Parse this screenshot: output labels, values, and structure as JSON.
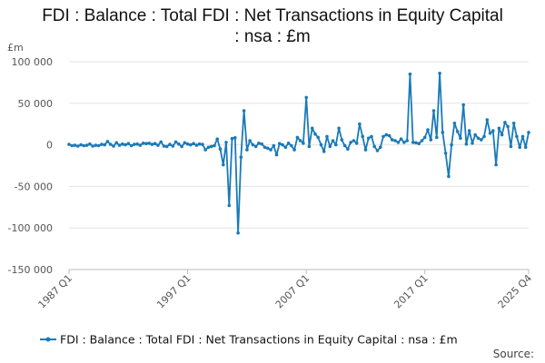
{
  "chart_data": {
    "type": "line",
    "title_line1": "FDI : Balance : Total FDI : Net Transactions in Equity Capital",
    "title_line2": ": nsa : £m",
    "unit_label": "£m",
    "ylim": [
      -150000,
      100000
    ],
    "y_ticks": [
      {
        "value": 100000,
        "label": "100 000"
      },
      {
        "value": 50000,
        "label": "50 000"
      },
      {
        "value": 0,
        "label": "0"
      },
      {
        "value": -50000,
        "label": "-50 000"
      },
      {
        "value": -100000,
        "label": "-100 000"
      },
      {
        "value": -150000,
        "label": "-150 000"
      }
    ],
    "x_start": "1987 Q1",
    "x_end": "2025 Q4",
    "x_ticks": [
      "1987 Q1",
      "1997 Q1",
      "2007 Q1",
      "2017 Q1",
      "2025 Q4"
    ],
    "grid": "horizontal",
    "legend_position": "bottom",
    "color": "#1a7ab8",
    "series": [
      {
        "name": "FDI : Balance : Total FDI : Net Transactions in Equity Capital : nsa : £m",
        "points": [
          [
            "1987 Q1",
            500
          ],
          [
            "1987 Q2",
            -1000
          ],
          [
            "1987 Q3",
            -500
          ],
          [
            "1987 Q4",
            -1500
          ],
          [
            "1988 Q1",
            0
          ],
          [
            "1988 Q2",
            -1000
          ],
          [
            "1988 Q3",
            -500
          ],
          [
            "1988 Q4",
            1000
          ],
          [
            "1989 Q1",
            -1500
          ],
          [
            "1989 Q2",
            -500
          ],
          [
            "1989 Q3",
            -1000
          ],
          [
            "1989 Q4",
            500
          ],
          [
            "1990 Q1",
            0
          ],
          [
            "1990 Q2",
            4000
          ],
          [
            "1990 Q3",
            500
          ],
          [
            "1990 Q4",
            -1500
          ],
          [
            "1991 Q1",
            2500
          ],
          [
            "1991 Q2",
            -500
          ],
          [
            "1991 Q3",
            1000
          ],
          [
            "1991 Q4",
            0
          ],
          [
            "1992 Q1",
            1500
          ],
          [
            "1992 Q2",
            -1000
          ],
          [
            "1992 Q3",
            500
          ],
          [
            "1992 Q4",
            1000
          ],
          [
            "1993 Q1",
            -500
          ],
          [
            "1993 Q2",
            2000
          ],
          [
            "1993 Q3",
            1500
          ],
          [
            "1993 Q4",
            2000
          ],
          [
            "1994 Q1",
            500
          ],
          [
            "1994 Q2",
            1500
          ],
          [
            "1994 Q3",
            -500
          ],
          [
            "1994 Q4",
            3500
          ],
          [
            "1995 Q1",
            -1500
          ],
          [
            "1995 Q2",
            -2000
          ],
          [
            "1995 Q3",
            500
          ],
          [
            "1995 Q4",
            -1500
          ],
          [
            "1996 Q1",
            3500
          ],
          [
            "1996 Q2",
            1000
          ],
          [
            "1996 Q3",
            -2000
          ],
          [
            "1996 Q4",
            2500
          ],
          [
            "1997 Q1",
            1000
          ],
          [
            "1997 Q2",
            0
          ],
          [
            "1997 Q3",
            1500
          ],
          [
            "1997 Q4",
            -500
          ],
          [
            "1998 Q1",
            1000
          ],
          [
            "1998 Q2",
            500
          ],
          [
            "1998 Q3",
            -6000
          ],
          [
            "1998 Q4",
            -3000
          ],
          [
            "1999 Q1",
            -2000
          ],
          [
            "1999 Q2",
            -1000
          ],
          [
            "1999 Q3",
            7000
          ],
          [
            "1999 Q4",
            -5000
          ],
          [
            "2000 Q1",
            -24000
          ],
          [
            "2000 Q2",
            3000
          ],
          [
            "2000 Q3",
            -73000
          ],
          [
            "2000 Q4",
            7500
          ],
          [
            "2001 Q1",
            8500
          ],
          [
            "2001 Q2",
            -106000
          ],
          [
            "2001 Q3",
            -15000
          ],
          [
            "2001 Q4",
            41000
          ],
          [
            "2002 Q1",
            -6000
          ],
          [
            "2002 Q2",
            5000
          ],
          [
            "2002 Q3",
            0
          ],
          [
            "2002 Q4",
            -2000
          ],
          [
            "2003 Q1",
            2000
          ],
          [
            "2003 Q2",
            1000
          ],
          [
            "2003 Q3",
            -3000
          ],
          [
            "2003 Q4",
            -4000
          ],
          [
            "2004 Q1",
            -6000
          ],
          [
            "2004 Q2",
            -1000
          ],
          [
            "2004 Q3",
            -12000
          ],
          [
            "2004 Q4",
            1500
          ],
          [
            "2005 Q1",
            0
          ],
          [
            "2005 Q2",
            -3000
          ],
          [
            "2005 Q3",
            2000
          ],
          [
            "2005 Q4",
            -1000
          ],
          [
            "2006 Q1",
            -6000
          ],
          [
            "2006 Q2",
            9000
          ],
          [
            "2006 Q3",
            5000
          ],
          [
            "2006 Q4",
            2000
          ],
          [
            "2007 Q1",
            57000
          ],
          [
            "2007 Q2",
            -2000
          ],
          [
            "2007 Q3",
            20000
          ],
          [
            "2007 Q4",
            13000
          ],
          [
            "2008 Q1",
            9000
          ],
          [
            "2008 Q2",
            0
          ],
          [
            "2008 Q3",
            -8000
          ],
          [
            "2008 Q4",
            10000
          ],
          [
            "2009 Q1",
            -2000
          ],
          [
            "2009 Q2",
            5000
          ],
          [
            "2009 Q3",
            0
          ],
          [
            "2009 Q4",
            20000
          ],
          [
            "2010 Q1",
            6000
          ],
          [
            "2010 Q2",
            -1000
          ],
          [
            "2010 Q3",
            -5000
          ],
          [
            "2010 Q4",
            3000
          ],
          [
            "2011 Q1",
            5000
          ],
          [
            "2011 Q2",
            2000
          ],
          [
            "2011 Q3",
            25000
          ],
          [
            "2011 Q4",
            10000
          ],
          [
            "2012 Q1",
            -6000
          ],
          [
            "2012 Q2",
            8000
          ],
          [
            "2012 Q3",
            10000
          ],
          [
            "2012 Q4",
            -2000
          ],
          [
            "2013 Q1",
            -7000
          ],
          [
            "2013 Q2",
            -3000
          ],
          [
            "2013 Q3",
            10000
          ],
          [
            "2013 Q4",
            12000
          ],
          [
            "2014 Q1",
            11000
          ],
          [
            "2014 Q2",
            6000
          ],
          [
            "2014 Q3",
            5000
          ],
          [
            "2014 Q4",
            3000
          ],
          [
            "2015 Q1",
            7000
          ],
          [
            "2015 Q2",
            3000
          ],
          [
            "2015 Q3",
            5000
          ],
          [
            "2015 Q4",
            85000
          ],
          [
            "2016 Q1",
            3000
          ],
          [
            "2016 Q2",
            2500
          ],
          [
            "2016 Q3",
            1500
          ],
          [
            "2016 Q4",
            5000
          ],
          [
            "2017 Q1",
            9000
          ],
          [
            "2017 Q2",
            18000
          ],
          [
            "2017 Q3",
            6000
          ],
          [
            "2017 Q4",
            41000
          ],
          [
            "2018 Q1",
            9000
          ],
          [
            "2018 Q2",
            86000
          ],
          [
            "2018 Q3",
            15000
          ],
          [
            "2018 Q4",
            -10000
          ],
          [
            "2019 Q1",
            -38000
          ],
          [
            "2019 Q2",
            0
          ],
          [
            "2019 Q3",
            26000
          ],
          [
            "2019 Q4",
            16000
          ],
          [
            "2020 Q1",
            8000
          ],
          [
            "2020 Q2",
            48000
          ],
          [
            "2020 Q3",
            1000
          ],
          [
            "2020 Q4",
            17000
          ],
          [
            "2021 Q1",
            2000
          ],
          [
            "2021 Q2",
            12000
          ],
          [
            "2021 Q3",
            8000
          ],
          [
            "2021 Q4",
            6000
          ],
          [
            "2022 Q1",
            10000
          ],
          [
            "2022 Q2",
            30000
          ],
          [
            "2022 Q3",
            14000
          ],
          [
            "2022 Q4",
            17000
          ],
          [
            "2023 Q1",
            -24000
          ],
          [
            "2023 Q2",
            20000
          ],
          [
            "2023 Q3",
            12000
          ],
          [
            "2023 Q4",
            27000
          ],
          [
            "2024 Q1",
            22000
          ],
          [
            "2024 Q2",
            -2000
          ],
          [
            "2024 Q3",
            26000
          ],
          [
            "2024 Q4",
            10000
          ],
          [
            "2025 Q1",
            -3000
          ],
          [
            "2025 Q2",
            10000
          ],
          [
            "2025 Q3",
            -3000
          ],
          [
            "2025 Q4",
            15000
          ]
        ]
      }
    ],
    "legend_label": "FDI : Balance : Total FDI : Net Transactions in Equity Capital : nsa : £m",
    "source_label": "Source:"
  }
}
